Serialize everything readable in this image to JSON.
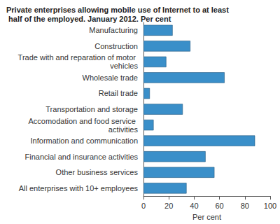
{
  "chart_data": {
    "type": "bar",
    "title": "Private enterprises allowing mobile use of Internet to at least half of the employed. January 2012. Per cent",
    "categories": [
      "Manufacturing",
      "Construction",
      "Trade with and reparation of motor vehicles",
      "Wholesale trade",
      "Retail trade",
      "Transportation and storage",
      "Accomodation and food service activities",
      "Information and communication",
      "Financial and insurance activities",
      "Other business services",
      "All enterprises with 10+ employees"
    ],
    "values": [
      23,
      37,
      18,
      64,
      5,
      31,
      8,
      88,
      49,
      56,
      34
    ],
    "color": "#3a8fc9",
    "orientation": "horizontal",
    "x_label": "Per cent",
    "xlim": [
      0,
      100
    ],
    "xticks": [
      0,
      20,
      40,
      60,
      80,
      100
    ],
    "grid": false
  }
}
